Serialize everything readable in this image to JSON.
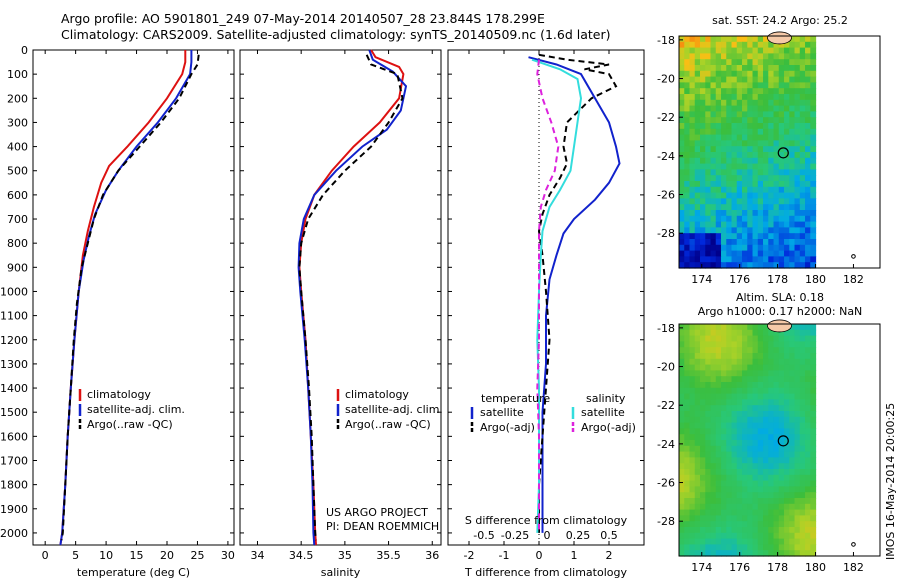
{
  "title_line1": "Argo profile: AO 5901801_249 07-May-2014 20140507_28 23.844S 178.299E",
  "title_line2": "Climatology: CARS2009. Satellite-adjusted climatology: synTS_20140509.nc (1.6d later)",
  "side_stamp": "IMOS 16-May-2014 20:00:25",
  "colors": {
    "red": "#dd1111",
    "blue": "#1122cc",
    "black": "#000000",
    "cyan": "#33dddd",
    "magenta": "#dd22dd"
  },
  "chart_data": [
    {
      "type": "line",
      "xlabel": "temperature (deg C)",
      "xticks": [
        "0",
        "5",
        "10",
        "15",
        "20",
        "25",
        "30"
      ],
      "xlim": [
        -2,
        31
      ],
      "ylim": [
        0,
        2050
      ],
      "yticks": [
        "0",
        "100",
        "200",
        "300",
        "400",
        "500",
        "600",
        "700",
        "800",
        "900",
        "1000",
        "1100",
        "1200",
        "1300",
        "1400",
        "1500",
        "1600",
        "1700",
        "1800",
        "1900",
        "2000"
      ],
      "legend": [
        "climatology",
        "satellite-adj. clim.",
        "Argo(..raw -QC)"
      ],
      "series": [
        {
          "name": "climatology",
          "color": "red",
          "dash": "",
          "points": [
            [
              23.0,
              0
            ],
            [
              23.0,
              50
            ],
            [
              22.5,
              100
            ],
            [
              20.0,
              200
            ],
            [
              17.0,
              300
            ],
            [
              13.5,
              400
            ],
            [
              10.5,
              480
            ],
            [
              9.2,
              550
            ],
            [
              8.0,
              650
            ],
            [
              7.0,
              750
            ],
            [
              6.2,
              850
            ],
            [
              5.5,
              1000
            ],
            [
              4.8,
              1200
            ],
            [
              4.2,
              1400
            ],
            [
              3.7,
              1600
            ],
            [
              3.3,
              1800
            ],
            [
              2.8,
              2000
            ],
            [
              2.5,
              2050
            ]
          ]
        },
        {
          "name": "satellite-adj. clim.",
          "color": "blue",
          "dash": "",
          "points": [
            [
              24.0,
              0
            ],
            [
              24.0,
              50
            ],
            [
              23.8,
              100
            ],
            [
              21.5,
              200
            ],
            [
              18.5,
              300
            ],
            [
              15.0,
              400
            ],
            [
              12.0,
              500
            ],
            [
              10.0,
              580
            ],
            [
              8.2,
              680
            ],
            [
              7.2,
              770
            ],
            [
              6.3,
              870
            ],
            [
              5.5,
              1000
            ],
            [
              4.8,
              1200
            ],
            [
              4.2,
              1400
            ],
            [
              3.7,
              1600
            ],
            [
              3.3,
              1800
            ],
            [
              2.8,
              2000
            ],
            [
              2.5,
              2050
            ]
          ]
        },
        {
          "name": "Argo(..raw -QC)",
          "color": "black",
          "dash": "6,4",
          "points": [
            [
              25.2,
              20
            ],
            [
              25.0,
              60
            ],
            [
              24.0,
              100
            ],
            [
              22.0,
              200
            ],
            [
              19.0,
              300
            ],
            [
              15.5,
              400
            ],
            [
              12.0,
              500
            ],
            [
              9.5,
              600
            ],
            [
              8.0,
              700
            ],
            [
              7.0,
              800
            ],
            [
              6.0,
              900
            ],
            [
              5.2,
              1050
            ],
            [
              4.7,
              1200
            ],
            [
              4.2,
              1400
            ],
            [
              3.7,
              1600
            ],
            [
              3.3,
              1800
            ],
            [
              2.9,
              2000
            ],
            [
              2.7,
              2030
            ]
          ]
        }
      ]
    },
    {
      "type": "line",
      "xlabel": "salinity",
      "xticks": [
        "34",
        "34.5",
        "35",
        "35.5",
        "36"
      ],
      "xlim": [
        33.8,
        36.1
      ],
      "ylim": [
        0,
        2050
      ],
      "legend": [
        "climatology",
        "satellite-adj. clim.",
        "Argo(..raw -QC)"
      ],
      "annotation": [
        "US ARGO PROJECT",
        "PI: DEAN ROEMMICH"
      ],
      "series": [
        {
          "name": "climatology",
          "color": "red",
          "dash": "",
          "points": [
            [
              35.3,
              0
            ],
            [
              35.35,
              30
            ],
            [
              35.62,
              70
            ],
            [
              35.67,
              100
            ],
            [
              35.62,
              200
            ],
            [
              35.4,
              300
            ],
            [
              35.1,
              400
            ],
            [
              34.85,
              500
            ],
            [
              34.65,
              600
            ],
            [
              34.55,
              700
            ],
            [
              34.5,
              800
            ],
            [
              34.48,
              900
            ],
            [
              34.5,
              1000
            ],
            [
              34.55,
              1200
            ],
            [
              34.58,
              1400
            ],
            [
              34.61,
              1600
            ],
            [
              34.64,
              1800
            ],
            [
              34.66,
              2000
            ],
            [
              34.67,
              2050
            ]
          ]
        },
        {
          "name": "satellite-adj. clim.",
          "color": "blue",
          "dash": "",
          "points": [
            [
              35.28,
              0
            ],
            [
              35.32,
              40
            ],
            [
              35.55,
              90
            ],
            [
              35.7,
              150
            ],
            [
              35.64,
              250
            ],
            [
              35.48,
              330
            ],
            [
              35.2,
              400
            ],
            [
              34.9,
              500
            ],
            [
              34.65,
              600
            ],
            [
              34.53,
              700
            ],
            [
              34.48,
              800
            ],
            [
              34.47,
              900
            ],
            [
              34.49,
              1000
            ],
            [
              34.54,
              1200
            ],
            [
              34.58,
              1400
            ],
            [
              34.61,
              1600
            ],
            [
              34.63,
              1800
            ],
            [
              34.64,
              2000
            ],
            [
              34.65,
              2050
            ]
          ]
        },
        {
          "name": "Argo(..raw -QC)",
          "color": "black",
          "dash": "6,4",
          "points": [
            [
              35.25,
              20
            ],
            [
              35.3,
              60
            ],
            [
              35.6,
              100
            ],
            [
              35.66,
              200
            ],
            [
              35.5,
              300
            ],
            [
              35.3,
              400
            ],
            [
              35.0,
              500
            ],
            [
              34.75,
              600
            ],
            [
              34.58,
              700
            ],
            [
              34.5,
              800
            ],
            [
              34.48,
              900
            ],
            [
              34.5,
              1000
            ],
            [
              34.55,
              1200
            ],
            [
              34.59,
              1400
            ],
            [
              34.62,
              1600
            ],
            [
              34.64,
              1800
            ],
            [
              34.66,
              2000
            ],
            [
              34.67,
              2030
            ]
          ]
        }
      ]
    },
    {
      "type": "line",
      "xlabel": "T difference from climatology",
      "xticks": [
        "-2",
        "-1",
        "0",
        "1",
        "2"
      ],
      "xlim": [
        -2.6,
        3.0
      ],
      "x2label": "S difference from climatology",
      "x2ticks": [
        "-0.5",
        "-0.25",
        "0",
        "0.25",
        "0.5"
      ],
      "ylim": [
        0,
        2050
      ],
      "legend_temperature_title": "temperature",
      "legend_salinity_title": "salinity",
      "legend": [
        "satellite",
        "Argo(-adj)",
        "satellite",
        "Argo(-adj)"
      ],
      "series": [
        {
          "name": "temperature satellite",
          "color": "blue",
          "dash": "",
          "points": [
            [
              -0.3,
              30
            ],
            [
              0.5,
              60
            ],
            [
              1.2,
              100
            ],
            [
              1.6,
              200
            ],
            [
              2.0,
              300
            ],
            [
              2.2,
              400
            ],
            [
              2.3,
              470
            ],
            [
              2.0,
              550
            ],
            [
              1.6,
              620
            ],
            [
              1.0,
              700
            ],
            [
              0.7,
              760
            ],
            [
              0.5,
              850
            ],
            [
              0.3,
              950
            ],
            [
              0.2,
              1100
            ],
            [
              0.2,
              1300
            ],
            [
              0.1,
              1500
            ],
            [
              0.1,
              1700
            ],
            [
              0.1,
              1900
            ],
            [
              0.1,
              2000
            ]
          ]
        },
        {
          "name": "temperature Argo(-adj)",
          "color": "black",
          "dash": "6,4",
          "points": [
            [
              0.0,
              20
            ],
            [
              0.8,
              40
            ],
            [
              2.0,
              60
            ],
            [
              1.3,
              80
            ],
            [
              2.0,
              100
            ],
            [
              2.2,
              150
            ],
            [
              1.5,
              200
            ],
            [
              0.8,
              300
            ],
            [
              0.7,
              400
            ],
            [
              0.8,
              470
            ],
            [
              0.6,
              530
            ],
            [
              0.3,
              600
            ],
            [
              0.1,
              680
            ],
            [
              0.0,
              750
            ],
            [
              0.1,
              850
            ],
            [
              0.2,
              1000
            ],
            [
              0.3,
              1200
            ],
            [
              0.2,
              1400
            ],
            [
              0.1,
              1600
            ],
            [
              0.0,
              1800
            ],
            [
              0.0,
              2000
            ]
          ]
        },
        {
          "name": "salinity satellite",
          "color": "cyan",
          "dash": "",
          "points": [
            [
              -0.2,
              40
            ],
            [
              0.6,
              80
            ],
            [
              1.1,
              120
            ],
            [
              1.2,
              200
            ],
            [
              1.1,
              300
            ],
            [
              1.0,
              400
            ],
            [
              0.9,
              500
            ],
            [
              0.6,
              580
            ],
            [
              0.3,
              650
            ],
            [
              0.1,
              750
            ],
            [
              0.05,
              850
            ],
            [
              0.0,
              1000
            ],
            [
              -0.05,
              1200
            ],
            [
              0.0,
              1400
            ],
            [
              0.0,
              1600
            ],
            [
              0.0,
              1800
            ],
            [
              -0.05,
              2000
            ]
          ]
        },
        {
          "name": "salinity Argo(-adj)",
          "color": "magenta",
          "dash": "6,4",
          "points": [
            [
              0.0,
              40
            ],
            [
              -0.05,
              100
            ],
            [
              0.1,
              200
            ],
            [
              0.35,
              300
            ],
            [
              0.55,
              400
            ],
            [
              0.45,
              500
            ],
            [
              0.2,
              580
            ],
            [
              0.05,
              650
            ],
            [
              0.0,
              750
            ],
            [
              0.0,
              850
            ],
            [
              0.0,
              1000
            ],
            [
              0.0,
              1200
            ],
            [
              -0.05,
              1400
            ],
            [
              0.0,
              1600
            ],
            [
              0.0,
              1800
            ],
            [
              0.0,
              2000
            ]
          ]
        }
      ]
    },
    {
      "type": "heatmap",
      "title": "sat. SST: 24.2  Argo: 25.2",
      "xticks": [
        "174",
        "176",
        "178",
        "180",
        "182"
      ],
      "yticks": [
        "-18",
        "-20",
        "-22",
        "-24",
        "-26",
        "-28"
      ],
      "xlim": [
        172.8,
        183.4
      ],
      "ylim": [
        -29.8,
        -17.8
      ],
      "marker": [
        178.299,
        -23.844
      ]
    },
    {
      "type": "heatmap",
      "title_line1": "Altim. SLA: 0.18",
      "title_line2": "Argo h1000: 0.17 h2000: NaN",
      "xticks": [
        "174",
        "176",
        "178",
        "180",
        "182"
      ],
      "yticks": [
        "-18",
        "-20",
        "-22",
        "-24",
        "-26",
        "-28"
      ],
      "xlim": [
        172.8,
        183.4
      ],
      "ylim": [
        -29.8,
        -17.8
      ],
      "marker": [
        178.299,
        -23.844
      ]
    }
  ]
}
